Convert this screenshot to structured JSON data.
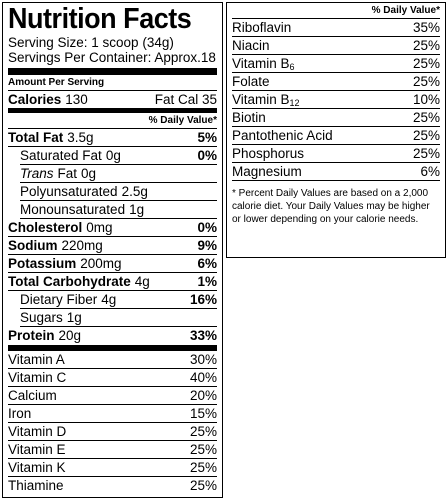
{
  "label": {
    "title": "Nutrition Facts",
    "serving_size": "Serving Size: 1 scoop (34g)",
    "servings_per_container": "Servings Per Container: Approx.18",
    "amount_per_serving": "Amount Per Serving",
    "calories": {
      "label": "Calories",
      "value": "130",
      "fat_calories": "Fat Cal 35"
    },
    "daily_value_header": "% Daily Value*",
    "nutrients": [
      {
        "name": "Total Fat",
        "amount": "3.5g",
        "dv": "5%",
        "bold": true
      },
      {
        "name": "Saturated Fat",
        "amount": "0g",
        "dv": "0%",
        "indent": true
      },
      {
        "italic": "Trans",
        "name": "Fat",
        "amount": "0g",
        "indent": true
      },
      {
        "name": "Polyunsaturated",
        "amount": "2.5g",
        "indent": true
      },
      {
        "name": "Monounsaturated",
        "amount": "1g",
        "indent": true
      },
      {
        "name": "Cholesterol",
        "amount": "0mg",
        "dv": "0%",
        "bold": true
      },
      {
        "name": "Sodium",
        "amount": "220mg",
        "dv": "9%",
        "bold": true
      },
      {
        "name": "Potassium",
        "amount": "200mg",
        "dv": "6%",
        "bold": true
      },
      {
        "name": "Total Carbohydrate",
        "amount": "4g",
        "dv": "1%",
        "bold": true
      },
      {
        "name": "Dietary Fiber",
        "amount": "4g",
        "dv": "16%",
        "indent": true
      },
      {
        "name": "Sugars",
        "amount": "1g",
        "indent": true
      },
      {
        "name": "Protein",
        "amount": "20g",
        "dv": "33%",
        "bold": true
      }
    ],
    "vitamins": [
      {
        "name": "Vitamin A",
        "dv": "30%"
      },
      {
        "name": "Vitamin C",
        "dv": "40%"
      },
      {
        "name": "Calcium",
        "dv": "20%"
      },
      {
        "name": "Iron",
        "dv": "15%"
      },
      {
        "name": "Vitamin D",
        "dv": "25%"
      },
      {
        "name": "Vitamin E",
        "dv": "25%"
      },
      {
        "name": "Vitamin K",
        "dv": "25%"
      },
      {
        "name": "Thiamine",
        "dv": "25%"
      }
    ]
  },
  "side_panel": {
    "daily_value_header": "% Daily Value*",
    "vitamins": [
      {
        "name": "Riboflavin",
        "dv": "35%"
      },
      {
        "name": "Niacin",
        "dv": "25%"
      },
      {
        "name": "Vitamin B",
        "sub": "6",
        "dv": "25%"
      },
      {
        "name": "Folate",
        "dv": "25%"
      },
      {
        "name": "Vitamin B",
        "sub": "12",
        "dv": "10%"
      },
      {
        "name": "Biotin",
        "dv": "25%"
      },
      {
        "name": "Pantothenic Acid",
        "dv": "25%"
      },
      {
        "name": "Phosphorus",
        "dv": "25%"
      },
      {
        "name": "Magnesium",
        "dv": "6%"
      }
    ],
    "footnote": "* Percent Daily Values are based on a 2,000 calorie diet. Your Daily Values may be higher or lower depending on your calorie needs."
  }
}
